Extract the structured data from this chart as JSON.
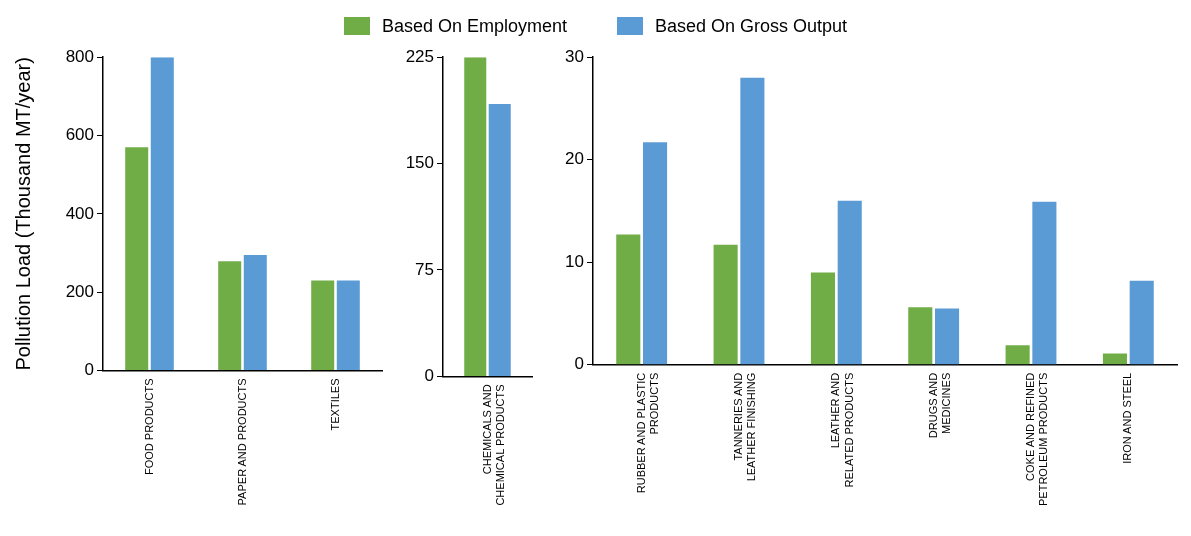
{
  "chart_data": [
    {
      "type": "bar",
      "ylabel": "Pollution Load (Thousand MT/year)",
      "categories": [
        "FOOD PRODUCTS",
        "PAPER AND PRODUCTS",
        "TEXTILES"
      ],
      "ylim": [
        0,
        800
      ],
      "yticks": [
        0,
        200,
        400,
        600,
        800
      ],
      "grid": false,
      "legend": "top",
      "series": [
        {
          "name": "Based On Employment",
          "color": "#70ad47",
          "values": [
            570,
            279,
            230
          ]
        },
        {
          "name": "Based On Gross Output",
          "color": "#5b9bd5",
          "values": [
            800,
            295,
            230
          ]
        }
      ]
    },
    {
      "type": "bar",
      "categories": [
        "CHEMICALS AND CHEMICAL PRODUCTS"
      ],
      "ylim": [
        0,
        225
      ],
      "yticks": [
        0,
        75,
        150,
        225
      ],
      "grid": false,
      "series": [
        {
          "color": "#70ad47",
          "values": [
            225
          ]
        },
        {
          "color": "#5b9bd5",
          "values": [
            192
          ]
        }
      ]
    },
    {
      "type": "bar",
      "categories": [
        "RUBBER AND PLASTIC PRODUCTS",
        "TANNERIES AND LEATHER FINISHING",
        "LEATHER AND RELATED PRODUCTS",
        "DRUGS AND MEDICINES",
        "COKE AND REFINED PETROLEUM PRODUCTS",
        "IRON AND STEEL"
      ],
      "ylim": [
        0,
        30
      ],
      "yticks": [
        0,
        10,
        20,
        30
      ],
      "grid": false,
      "series": [
        {
          "color": "#70ad47",
          "values": [
            12.7,
            11.7,
            9.0,
            5.6,
            1.9,
            1.1
          ]
        },
        {
          "color": "#5b9bd5",
          "values": [
            21.7,
            28.0,
            16.0,
            5.5,
            15.9,
            8.2
          ]
        }
      ]
    }
  ]
}
